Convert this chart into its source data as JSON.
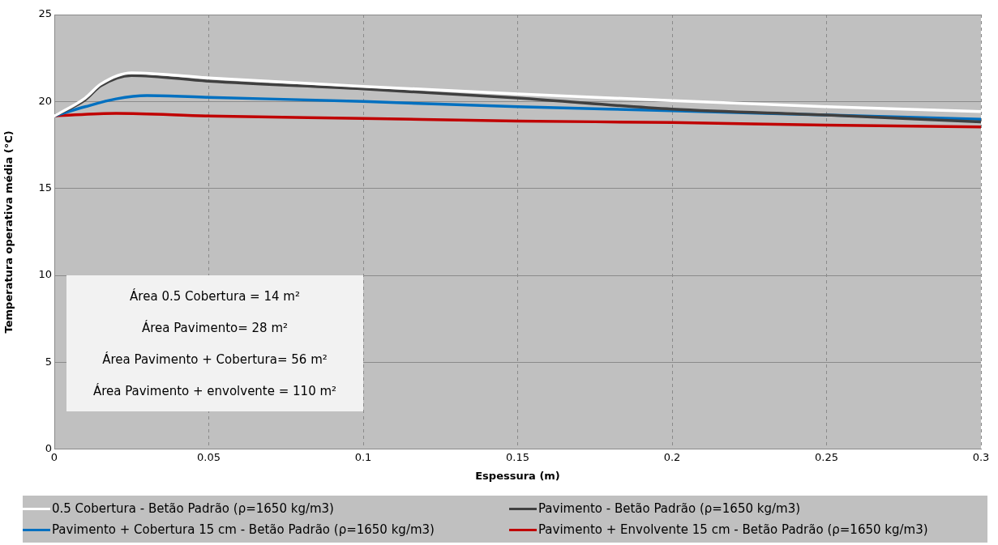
{
  "chart_data": {
    "type": "line",
    "xlabel": "Espessura (m)",
    "ylabel": "Temperatura operativa média (°C)",
    "xlim": [
      0,
      0.3
    ],
    "xticks": [
      0,
      0.05,
      0.1,
      0.15,
      0.2,
      0.25,
      0.3
    ],
    "ylim": [
      0,
      25
    ],
    "yticks": [
      0,
      5,
      10,
      15,
      20,
      25
    ],
    "grid": true,
    "legend": "bottom",
    "marker": "none",
    "line_style": "solid",
    "annotations": [
      "Área 0.5 Cobertura = 14 m²",
      "Área Pavimento= 28 m²",
      "Área Pavimento + Cobertura= 56 m²",
      "Área Pavimento + envolvente = 110 m²"
    ],
    "series": [
      {
        "name": "0.5 Cobertura - Betão Padrão  (ρ=1650 kg/m3)",
        "color": "#ffffff",
        "x": [
          0,
          0.01,
          0.015,
          0.025,
          0.05,
          0.1,
          0.15,
          0.2,
          0.25,
          0.3
        ],
        "values": [
          19.17,
          20.2,
          21.0,
          21.65,
          21.36,
          20.87,
          20.44,
          20.05,
          19.7,
          19.42
        ]
      },
      {
        "name": "Pavimento - Betão Padrão  (ρ=1650 kg/m3)",
        "color": "#404040",
        "x": [
          0,
          0.01,
          0.015,
          0.025,
          0.05,
          0.1,
          0.15,
          0.2,
          0.25,
          0.3
        ],
        "values": [
          19.17,
          20.1,
          20.9,
          21.5,
          21.17,
          20.73,
          20.2,
          19.56,
          19.22,
          18.83
        ]
      },
      {
        "name": "Pavimento + Cobertura 15 cm - Betão Padrão  (ρ=1650 kg/m3)",
        "color": "#0070c0",
        "x": [
          0,
          0.01,
          0.02,
          0.03,
          0.05,
          0.1,
          0.15,
          0.2,
          0.25,
          0.3
        ],
        "values": [
          19.17,
          19.7,
          20.15,
          20.34,
          20.24,
          20.0,
          19.7,
          19.47,
          19.22,
          18.98
        ]
      },
      {
        "name": "Pavimento + Envolvente 15 cm - Betão Padrão  (ρ=1650 kg/m3)",
        "color": "#c00000",
        "x": [
          0,
          0.02,
          0.05,
          0.1,
          0.15,
          0.2,
          0.25,
          0.3
        ],
        "values": [
          19.17,
          19.32,
          19.17,
          19.03,
          18.88,
          18.79,
          18.64,
          18.54
        ]
      }
    ]
  }
}
